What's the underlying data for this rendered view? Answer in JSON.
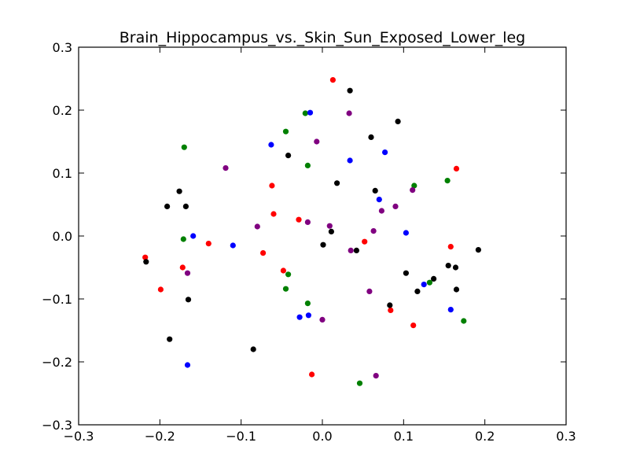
{
  "chart_data": {
    "type": "scatter",
    "title": "Brain_Hippocampus_vs._Skin_Sun_Exposed_Lower_leg",
    "xlabel": "",
    "ylabel": "",
    "xlim": [
      -0.3,
      0.3
    ],
    "ylim": [
      -0.3,
      0.3
    ],
    "x_ticks": [
      "−0.3",
      "−0.2",
      "−0.1",
      "0.0",
      "0.1",
      "0.2",
      "0.3"
    ],
    "y_ticks": [
      "−0.3",
      "−0.2",
      "−0.1",
      "0.0",
      "0.1",
      "0.2",
      "0.3"
    ],
    "grid": false,
    "series": [
      {
        "color": "#ff0000",
        "points": [
          [
            0.013,
            0.248
          ],
          [
            0.165,
            0.107
          ],
          [
            -0.062,
            0.08
          ],
          [
            -0.06,
            0.035
          ],
          [
            -0.029,
            0.026
          ],
          [
            -0.14,
            -0.012
          ],
          [
            -0.073,
            -0.027
          ],
          [
            0.052,
            -0.009
          ],
          [
            -0.218,
            -0.034
          ],
          [
            -0.172,
            -0.05
          ],
          [
            -0.199,
            -0.085
          ],
          [
            -0.048,
            -0.055
          ],
          [
            0.158,
            -0.017
          ],
          [
            0.084,
            -0.118
          ],
          [
            0.112,
            -0.142
          ],
          [
            -0.013,
            -0.22
          ]
        ]
      },
      {
        "color": "#000000",
        "points": [
          [
            0.034,
            0.231
          ],
          [
            0.093,
            0.182
          ],
          [
            0.06,
            0.157
          ],
          [
            -0.042,
            0.128
          ],
          [
            0.018,
            0.084
          ],
          [
            -0.176,
            0.071
          ],
          [
            -0.168,
            0.047
          ],
          [
            -0.191,
            0.047
          ],
          [
            0.065,
            0.072
          ],
          [
            0.011,
            0.007
          ],
          [
            0.001,
            -0.014
          ],
          [
            0.042,
            -0.023
          ],
          [
            0.192,
            -0.022
          ],
          [
            -0.217,
            -0.041
          ],
          [
            0.155,
            -0.047
          ],
          [
            0.164,
            -0.05
          ],
          [
            0.103,
            -0.059
          ],
          [
            0.137,
            -0.068
          ],
          [
            0.165,
            -0.085
          ],
          [
            0.117,
            -0.088
          ],
          [
            -0.165,
            -0.101
          ],
          [
            0.083,
            -0.11
          ],
          [
            -0.188,
            -0.164
          ],
          [
            -0.085,
            -0.18
          ]
        ]
      },
      {
        "color": "#008000",
        "points": [
          [
            -0.021,
            0.195
          ],
          [
            -0.045,
            0.166
          ],
          [
            -0.17,
            0.141
          ],
          [
            -0.018,
            0.112
          ],
          [
            0.113,
            0.08
          ],
          [
            0.154,
            0.088
          ],
          [
            -0.171,
            -0.005
          ],
          [
            -0.042,
            -0.061
          ],
          [
            -0.045,
            -0.084
          ],
          [
            0.132,
            -0.074
          ],
          [
            -0.018,
            -0.107
          ],
          [
            0.174,
            -0.135
          ],
          [
            0.046,
            -0.234
          ]
        ]
      },
      {
        "color": "#0000ff",
        "points": [
          [
            -0.015,
            0.196
          ],
          [
            -0.063,
            0.145
          ],
          [
            0.077,
            0.133
          ],
          [
            0.034,
            0.12
          ],
          [
            0.07,
            0.058
          ],
          [
            -0.159,
            0.0
          ],
          [
            0.103,
            0.005
          ],
          [
            -0.11,
            -0.015
          ],
          [
            0.125,
            -0.077
          ],
          [
            0.158,
            -0.117
          ],
          [
            -0.017,
            -0.126
          ],
          [
            -0.028,
            -0.129
          ],
          [
            -0.166,
            -0.205
          ]
        ]
      },
      {
        "color": "#800080",
        "points": [
          [
            0.033,
            0.195
          ],
          [
            -0.007,
            0.15
          ],
          [
            -0.119,
            0.108
          ],
          [
            0.111,
            0.073
          ],
          [
            0.09,
            0.047
          ],
          [
            0.073,
            0.04
          ],
          [
            -0.018,
            0.022
          ],
          [
            0.009,
            0.016
          ],
          [
            -0.08,
            0.015
          ],
          [
            0.063,
            0.008
          ],
          [
            0.035,
            -0.023
          ],
          [
            -0.166,
            -0.059
          ],
          [
            0.058,
            -0.088
          ],
          [
            0.0,
            -0.133
          ],
          [
            0.066,
            -0.222
          ]
        ]
      }
    ]
  }
}
